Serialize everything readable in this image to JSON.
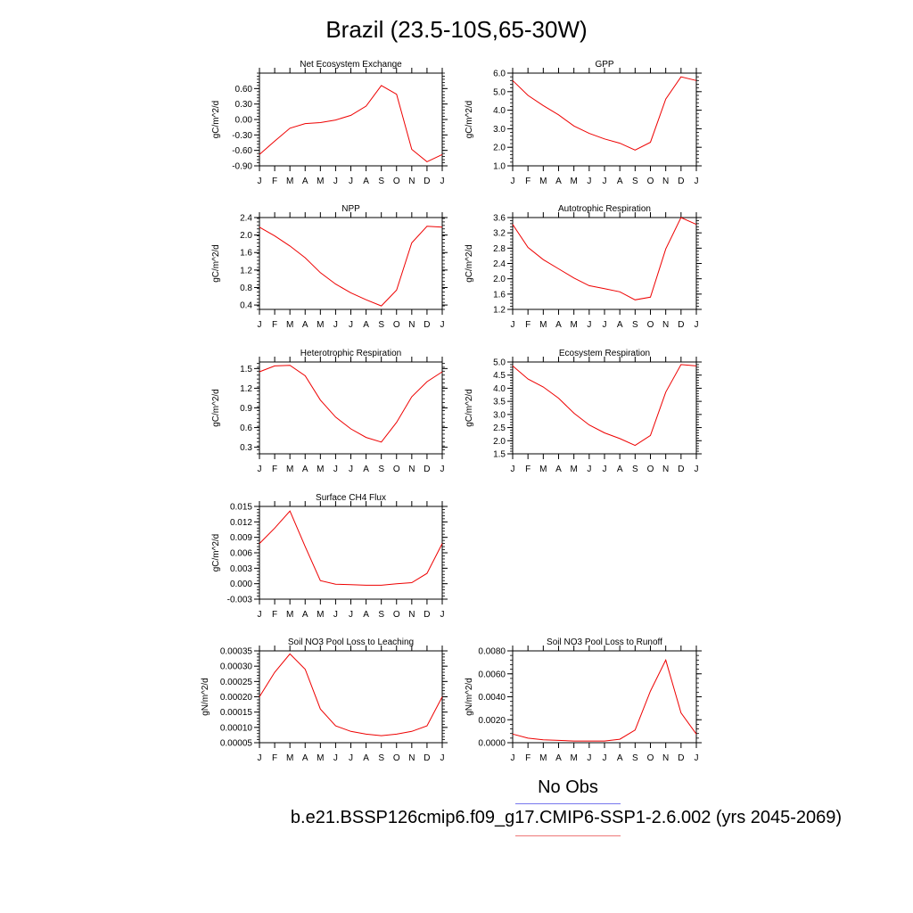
{
  "page": {
    "title": "Brazil (23.5-10S,65-30W)",
    "legend_obs": "No Obs",
    "legend_case": "b.e21.BSSP126cmip6.f09_g17.CMIP6-SSP1-2.6.002 (yrs 2045-2069)",
    "line_color": "#ee0000",
    "obs_line_color": "#7777ee",
    "case_line_color": "#ee7777"
  },
  "chart_data": [
    {
      "type": "line",
      "title": "Net Ecosystem Exchange",
      "ylabel": "gC/m^2/d",
      "x": [
        "J",
        "F",
        "M",
        "A",
        "M",
        "J",
        "J",
        "A",
        "S",
        "O",
        "N",
        "D",
        "J"
      ],
      "values": [
        -0.68,
        -0.42,
        -0.17,
        -0.08,
        -0.06,
        -0.01,
        0.08,
        0.26,
        0.66,
        0.49,
        -0.58,
        -0.82,
        -0.68
      ],
      "ylim": [
        -0.9,
        0.9
      ],
      "yticks": [
        -0.9,
        -0.6,
        -0.3,
        0.0,
        0.3,
        0.6
      ],
      "yticklabels": [
        "-0.90",
        "-0.60",
        "-0.30",
        "0.00",
        "0.30",
        "0.60"
      ]
    },
    {
      "type": "line",
      "title": "GPP",
      "ylabel": "gC/m^2/d",
      "x": [
        "J",
        "F",
        "M",
        "A",
        "M",
        "J",
        "J",
        "A",
        "S",
        "O",
        "N",
        "D",
        "J"
      ],
      "values": [
        5.6,
        4.8,
        4.25,
        3.75,
        3.15,
        2.75,
        2.45,
        2.22,
        1.85,
        2.27,
        4.6,
        5.8,
        5.6
      ],
      "ylim": [
        1.0,
        6.0
      ],
      "yticks": [
        1,
        2,
        3,
        4,
        5,
        6
      ],
      "yticklabels": [
        "1.0",
        "2.0",
        "3.0",
        "4.0",
        "5.0",
        "6.0"
      ]
    },
    {
      "type": "line",
      "title": "NPP",
      "ylabel": "gC/m^2/d",
      "x": [
        "J",
        "F",
        "M",
        "A",
        "M",
        "J",
        "J",
        "A",
        "S",
        "O",
        "N",
        "D",
        "J"
      ],
      "values": [
        2.18,
        1.98,
        1.75,
        1.48,
        1.14,
        0.88,
        0.68,
        0.52,
        0.38,
        0.74,
        1.82,
        2.2,
        2.18
      ],
      "ylim": [
        0.3,
        2.4
      ],
      "yticks": [
        0.4,
        0.8,
        1.2,
        1.6,
        2.0,
        2.4
      ],
      "yticklabels": [
        "0.4",
        "0.8",
        "1.2",
        "1.6",
        "2.0",
        "2.4"
      ]
    },
    {
      "type": "line",
      "title": "Autotrophic Respiration",
      "ylabel": "gC/m^2/d",
      "x": [
        "J",
        "F",
        "M",
        "A",
        "M",
        "J",
        "J",
        "A",
        "S",
        "O",
        "N",
        "D",
        "J"
      ],
      "values": [
        3.42,
        2.82,
        2.5,
        2.26,
        2.02,
        1.82,
        1.74,
        1.66,
        1.45,
        1.52,
        2.78,
        3.6,
        3.42
      ],
      "ylim": [
        1.2,
        3.6
      ],
      "yticks": [
        1.2,
        1.6,
        2.0,
        2.4,
        2.8,
        3.2,
        3.6
      ],
      "yticklabels": [
        "1.2",
        "1.6",
        "2.0",
        "2.4",
        "2.8",
        "3.2",
        "3.6"
      ]
    },
    {
      "type": "line",
      "title": "Heterotrophic Respiration",
      "ylabel": "gC/m^2/d",
      "x": [
        "J",
        "F",
        "M",
        "A",
        "M",
        "J",
        "J",
        "A",
        "S",
        "O",
        "N",
        "D",
        "J"
      ],
      "values": [
        1.45,
        1.54,
        1.55,
        1.39,
        1.02,
        0.76,
        0.58,
        0.45,
        0.38,
        0.68,
        1.07,
        1.3,
        1.45
      ],
      "ylim": [
        0.2,
        1.6
      ],
      "yticks": [
        0.3,
        0.6,
        0.9,
        1.2,
        1.5
      ],
      "yticklabels": [
        "0.3",
        "0.6",
        "0.9",
        "1.2",
        "1.5"
      ]
    },
    {
      "type": "line",
      "title": "Ecosystem Respiration",
      "ylabel": "gC/m^2/d",
      "x": [
        "J",
        "F",
        "M",
        "A",
        "M",
        "J",
        "J",
        "A",
        "S",
        "O",
        "N",
        "D",
        "J"
      ],
      "values": [
        4.85,
        4.35,
        4.05,
        3.62,
        3.05,
        2.6,
        2.3,
        2.08,
        1.82,
        2.2,
        3.85,
        4.9,
        4.85
      ],
      "ylim": [
        1.5,
        5.0
      ],
      "yticks": [
        1.5,
        2.0,
        2.5,
        3.0,
        3.5,
        4.0,
        4.5,
        5.0
      ],
      "yticklabels": [
        "1.5",
        "2.0",
        "2.5",
        "3.0",
        "3.5",
        "4.0",
        "4.5",
        "5.0"
      ]
    },
    {
      "type": "line",
      "title": "Surface CH4 Flux",
      "ylabel": "gC/m^2/d",
      "x": [
        "J",
        "F",
        "M",
        "A",
        "M",
        "J",
        "J",
        "A",
        "S",
        "O",
        "N",
        "D",
        "J"
      ],
      "values": [
        0.0078,
        0.0108,
        0.0141,
        0.0072,
        0.0006,
        -0.0001,
        -0.0002,
        -0.0003,
        -0.0003,
        0.0,
        0.0002,
        0.002,
        0.0078
      ],
      "ylim": [
        -0.003,
        0.015
      ],
      "yticks": [
        -0.003,
        0.0,
        0.003,
        0.006,
        0.009,
        0.012,
        0.015
      ],
      "yticklabels": [
        "-0.003",
        "0.000",
        "0.003",
        "0.006",
        "0.009",
        "0.012",
        "0.015"
      ]
    },
    {
      "type": "line",
      "title": "Soil NO3 Pool Loss to Leaching",
      "ylabel": "gN/m^2/d",
      "x": [
        "J",
        "F",
        "M",
        "A",
        "M",
        "J",
        "J",
        "A",
        "S",
        "O",
        "N",
        "D",
        "J"
      ],
      "values": [
        0.0002,
        0.00028,
        0.00034,
        0.00029,
        0.00016,
        0.000105,
        8.7e-05,
        7.8e-05,
        7.3e-05,
        7.8e-05,
        8.7e-05,
        0.000105,
        0.0002
      ],
      "ylim": [
        5e-05,
        0.00035
      ],
      "yticks": [
        5e-05,
        0.0001,
        0.00015,
        0.0002,
        0.00025,
        0.0003,
        0.00035
      ],
      "yticklabels": [
        "0.00005",
        "0.00010",
        "0.00015",
        "0.00020",
        "0.00025",
        "0.00030",
        "0.00035"
      ]
    },
    {
      "type": "line",
      "title": "Soil NO3 Pool Loss to Runoff",
      "ylabel": "gN/m^2/d",
      "x": [
        "J",
        "F",
        "M",
        "A",
        "M",
        "J",
        "J",
        "A",
        "S",
        "O",
        "N",
        "D",
        "J"
      ],
      "values": [
        0.00075,
        0.0004,
        0.00025,
        0.0002,
        0.00015,
        0.00015,
        0.00015,
        0.0003,
        0.0011,
        0.0045,
        0.0072,
        0.0026,
        0.00075
      ],
      "ylim": [
        0.0,
        0.008
      ],
      "yticks": [
        0.0,
        0.002,
        0.004,
        0.006,
        0.008
      ],
      "yticklabels": [
        "0.0000",
        "0.0020",
        "0.0040",
        "0.0060",
        "0.0080"
      ]
    }
  ]
}
